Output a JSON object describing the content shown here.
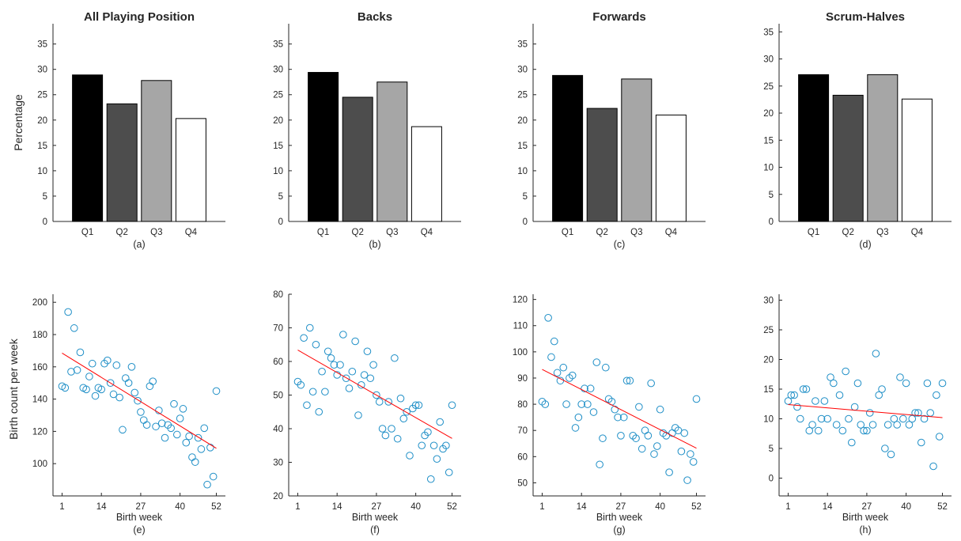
{
  "figure": {
    "ylabel_top": "Percentage",
    "ylabel_bottom": "Birth count per week",
    "xlabel_bottom": "Birth week",
    "colors": {
      "axis": "#262626",
      "scatter_marker": "#1f8fc7",
      "fit_line": "#ff0000",
      "bar_fills": [
        "#000000",
        "#4d4d4d",
        "#a6a6a6",
        "#ffffff"
      ]
    }
  },
  "chart_data": [
    {
      "type": "bar",
      "title": "All Playing Position",
      "panel_label": "(a)",
      "categories": [
        "Q1",
        "Q2",
        "Q3",
        "Q4"
      ],
      "values": [
        28.9,
        23.2,
        27.8,
        20.3
      ],
      "ylabel": "Percentage",
      "ylim": [
        0,
        39
      ],
      "yticks": [
        0,
        5,
        10,
        15,
        20,
        25,
        30,
        35
      ]
    },
    {
      "type": "bar",
      "title": "Backs",
      "panel_label": "(b)",
      "categories": [
        "Q1",
        "Q2",
        "Q3",
        "Q4"
      ],
      "values": [
        29.4,
        24.5,
        27.5,
        18.7
      ],
      "ylim": [
        0,
        39
      ],
      "yticks": [
        0,
        5,
        10,
        15,
        20,
        25,
        30,
        35
      ]
    },
    {
      "type": "bar",
      "title": "Forwards",
      "panel_label": "(c)",
      "categories": [
        "Q1",
        "Q2",
        "Q3",
        "Q4"
      ],
      "values": [
        28.8,
        22.3,
        28.1,
        21.0
      ],
      "ylim": [
        0,
        39
      ],
      "yticks": [
        0,
        5,
        10,
        15,
        20,
        25,
        30,
        35
      ]
    },
    {
      "type": "bar",
      "title": "Scrum-Halves",
      "panel_label": "(d)",
      "categories": [
        "Q1",
        "Q2",
        "Q3",
        "Q4"
      ],
      "values": [
        27.1,
        23.3,
        27.1,
        22.6
      ],
      "ylim": [
        0,
        36.5
      ],
      "yticks": [
        0,
        5,
        10,
        15,
        20,
        25,
        30,
        35
      ]
    },
    {
      "type": "scatter",
      "panel_label": "(e)",
      "xlabel": "Birth week",
      "ylabel": "Birth count per week",
      "xlim": [
        -2,
        55
      ],
      "ylim": [
        80,
        205
      ],
      "xticks": [
        1,
        14,
        27,
        40,
        52
      ],
      "yticks": [
        100,
        120,
        140,
        160,
        180,
        200
      ],
      "x": [
        1,
        2,
        3,
        4,
        5,
        6,
        7,
        8,
        9,
        10,
        11,
        12,
        13,
        14,
        15,
        16,
        17,
        18,
        19,
        20,
        21,
        22,
        23,
        24,
        25,
        26,
        27,
        28,
        29,
        30,
        31,
        32,
        33,
        34,
        35,
        36,
        37,
        38,
        39,
        40,
        41,
        42,
        43,
        44,
        45,
        46,
        47,
        48,
        49,
        50,
        51,
        52
      ],
      "y": [
        148,
        147,
        194,
        157,
        184,
        158,
        169,
        147,
        146,
        154,
        162,
        142,
        147,
        146,
        162,
        164,
        150,
        143,
        161,
        141,
        121,
        153,
        150,
        160,
        144,
        139,
        132,
        127,
        124,
        148,
        151,
        123,
        133,
        125,
        116,
        124,
        122,
        137,
        118,
        128,
        134,
        113,
        117,
        104,
        101,
        116,
        109,
        122,
        87,
        110,
        92,
        145
      ],
      "fit": {
        "x": [
          1,
          52
        ],
        "y": [
          168.5,
          109.5
        ]
      }
    },
    {
      "type": "scatter",
      "panel_label": "(f)",
      "xlabel": "Birth week",
      "xlim": [
        -2,
        55
      ],
      "ylim": [
        20,
        80
      ],
      "xticks": [
        1,
        14,
        27,
        40,
        52
      ],
      "yticks": [
        20,
        30,
        40,
        50,
        60,
        70,
        80
      ],
      "x": [
        1,
        2,
        3,
        4,
        5,
        6,
        7,
        8,
        9,
        10,
        11,
        12,
        13,
        14,
        15,
        16,
        17,
        18,
        19,
        20,
        21,
        22,
        23,
        24,
        25,
        26,
        27,
        28,
        29,
        30,
        31,
        32,
        33,
        34,
        35,
        36,
        37,
        38,
        39,
        40,
        41,
        42,
        43,
        44,
        45,
        46,
        47,
        48,
        49,
        50,
        51,
        52
      ],
      "y": [
        54,
        53,
        67,
        47,
        70,
        51,
        65,
        45,
        57,
        51,
        63,
        61,
        59,
        56,
        59,
        68,
        55,
        52,
        57,
        66,
        44,
        53,
        56,
        63,
        55,
        59,
        50,
        48,
        40,
        38,
        48,
        40,
        61,
        37,
        49,
        43,
        45,
        32,
        46,
        47,
        47,
        35,
        38,
        39,
        25,
        35,
        31,
        42,
        34,
        35,
        27,
        47
      ],
      "fit": {
        "x": [
          1,
          52
        ],
        "y": [
          63.4,
          37.1
        ]
      }
    },
    {
      "type": "scatter",
      "panel_label": "(g)",
      "xlabel": "Birth week",
      "xlim": [
        -2,
        55
      ],
      "ylim": [
        45,
        122
      ],
      "xticks": [
        1,
        14,
        27,
        40,
        52
      ],
      "yticks": [
        50,
        60,
        70,
        80,
        90,
        100,
        110,
        120
      ],
      "x": [
        1,
        2,
        3,
        4,
        5,
        6,
        7,
        8,
        9,
        10,
        11,
        12,
        13,
        14,
        15,
        16,
        17,
        18,
        19,
        20,
        21,
        22,
        23,
        24,
        25,
        26,
        27,
        28,
        29,
        30,
        31,
        32,
        33,
        34,
        35,
        36,
        37,
        38,
        39,
        40,
        41,
        42,
        43,
        44,
        45,
        46,
        47,
        48,
        49,
        50,
        51,
        52
      ],
      "y": [
        81,
        80,
        113,
        98,
        104,
        92,
        89,
        94,
        80,
        90,
        91,
        71,
        75,
        80,
        86,
        80,
        86,
        77,
        96,
        57,
        67,
        94,
        82,
        81,
        78,
        75,
        68,
        75,
        89,
        89,
        68,
        67,
        79,
        63,
        70,
        68,
        88,
        61,
        64,
        78,
        69,
        68,
        54,
        69,
        71,
        70,
        62,
        69,
        51,
        61,
        58,
        82
      ],
      "fit": {
        "x": [
          1,
          52
        ],
        "y": [
          93.3,
          63.2
        ]
      }
    },
    {
      "type": "scatter",
      "panel_label": "(h)",
      "xlabel": "Birth week",
      "xlim": [
        -2,
        55
      ],
      "ylim": [
        -3,
        31
      ],
      "xticks": [
        1,
        14,
        27,
        40,
        52
      ],
      "yticks": [
        0,
        5,
        10,
        15,
        20,
        25,
        30
      ],
      "x": [
        1,
        2,
        3,
        4,
        5,
        6,
        7,
        8,
        9,
        10,
        11,
        12,
        13,
        14,
        15,
        16,
        17,
        18,
        19,
        20,
        21,
        22,
        23,
        24,
        25,
        26,
        27,
        28,
        29,
        30,
        31,
        32,
        33,
        34,
        35,
        36,
        37,
        38,
        39,
        40,
        41,
        42,
        43,
        44,
        45,
        46,
        47,
        48,
        49,
        50,
        51,
        52
      ],
      "y": [
        13,
        14,
        14,
        12,
        10,
        15,
        15,
        8,
        9,
        13,
        8,
        10,
        13,
        10,
        17,
        16,
        9,
        14,
        8,
        18,
        10,
        6,
        12,
        16,
        9,
        8,
        8,
        11,
        9,
        21,
        14,
        15,
        5,
        9,
        4,
        10,
        9,
        17,
        10,
        16,
        9,
        10,
        11,
        11,
        6,
        10,
        16,
        11,
        2,
        14,
        7,
        16
      ],
      "fit": {
        "x": [
          1,
          52
        ],
        "y": [
          12.4,
          10.2
        ]
      }
    }
  ]
}
